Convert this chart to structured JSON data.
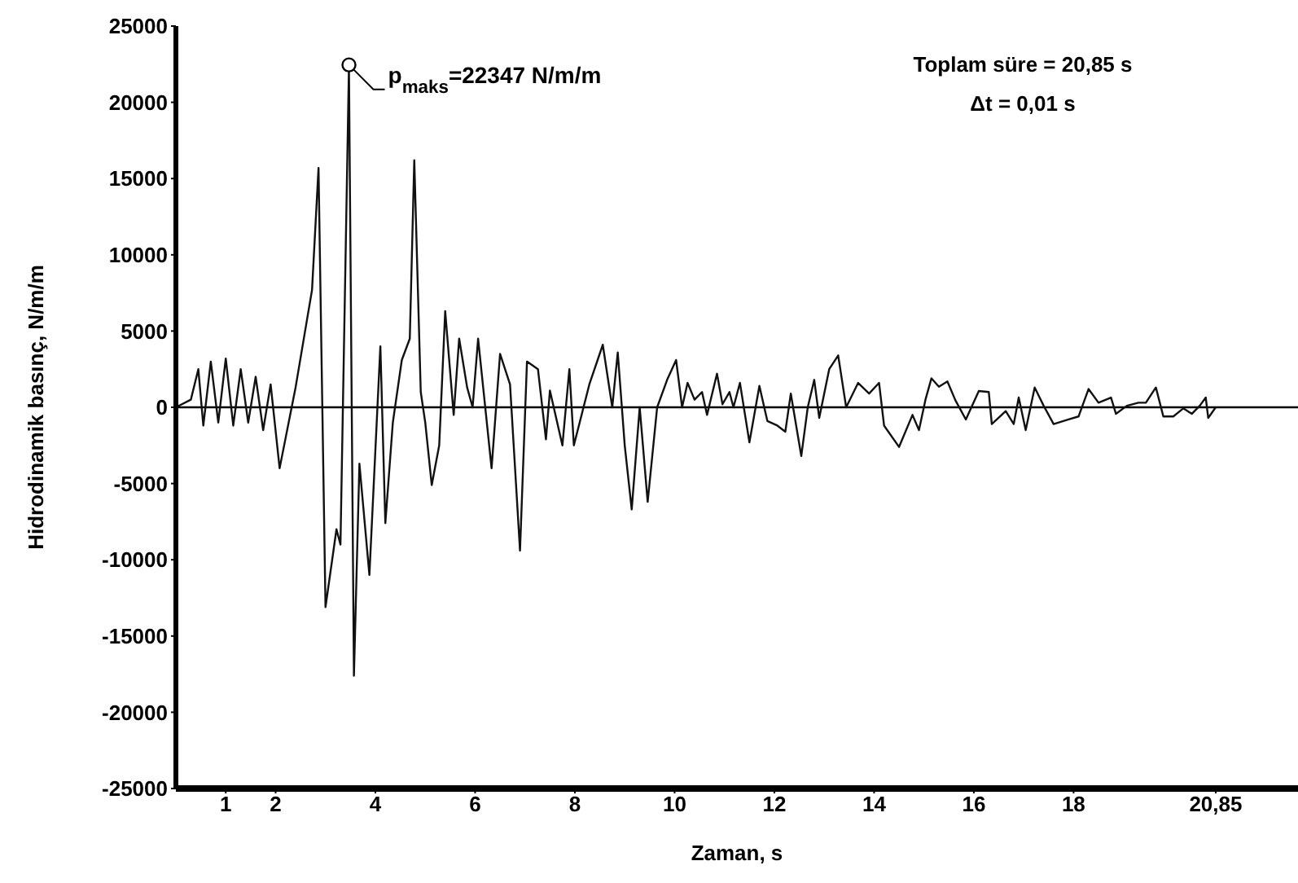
{
  "chart_data": {
    "type": "line",
    "xlabel": "Zaman, s",
    "ylabel": "Hidrodinamik basınç,  N/m/m",
    "xlim": [
      0,
      22.5
    ],
    "xticks": [
      1,
      2,
      4,
      6,
      8,
      10,
      12,
      14,
      16,
      18,
      {
        "value": 20.85,
        "label": "20,85"
      }
    ],
    "ylim": [
      -25000,
      25000
    ],
    "yticks": [
      -25000,
      -20000,
      -15000,
      -10000,
      -5000,
      0,
      5000,
      10000,
      15000,
      20000,
      25000
    ],
    "grid": false,
    "legend": false,
    "marker": "none",
    "line_style": "solid",
    "ref_lines": [
      {
        "axis": "y",
        "value": 0,
        "color": "#000000"
      }
    ],
    "annotations": [
      {
        "text": "p$_{maks}$=22347 N/m/m",
        "x": 3.47,
        "y": 22347
      },
      "Toplam süre = 20,85 s",
      "Δt = 0,01 s"
    ],
    "x": [
      0,
      0.3,
      0.45,
      0.55,
      0.7,
      0.85,
      1.0,
      1.15,
      1.3,
      1.45,
      1.6,
      1.75,
      1.9,
      2.08,
      2.4,
      2.73,
      2.86,
      3.0,
      3.22,
      3.3,
      3.47,
      3.57,
      3.68,
      3.88,
      4.1,
      4.2,
      4.35,
      4.53,
      4.69,
      4.78,
      4.91,
      5.0,
      5.13,
      5.28,
      5.4,
      5.57,
      5.68,
      5.84,
      5.95,
      6.06,
      6.33,
      6.5,
      6.7,
      6.9,
      7.04,
      7.26,
      7.42,
      7.5,
      7.75,
      7.89,
      7.98,
      8.29,
      8.56,
      8.75,
      8.86,
      9.0,
      9.14,
      9.3,
      9.46,
      9.65,
      9.85,
      10.03,
      10.15,
      10.26,
      10.4,
      10.55,
      10.65,
      10.85,
      10.96,
      11.1,
      11.18,
      11.31,
      11.5,
      11.7,
      11.86,
      12.06,
      12.22,
      12.33,
      12.54,
      12.67,
      12.8,
      12.9,
      13.1,
      13.28,
      13.44,
      13.68,
      13.9,
      14.1,
      14.2,
      14.5,
      14.77,
      14.9,
      15.03,
      15.15,
      15.3,
      15.47,
      15.63,
      15.84,
      16.1,
      16.3,
      16.36,
      16.64,
      16.8,
      16.9,
      17.04,
      17.22,
      17.4,
      17.6,
      17.9,
      18.1,
      18.3,
      18.5,
      18.75,
      18.85,
      19.07,
      19.3,
      19.45,
      19.65,
      19.8,
      20.0,
      20.2,
      20.37,
      20.53,
      20.65,
      20.7,
      20.85
    ],
    "series": [
      {
        "color": "#111111",
        "values": [
          0,
          500,
          2500,
          -1200,
          3000,
          -1000,
          3200,
          -1200,
          2500,
          -1000,
          2000,
          -1500,
          1500,
          -4000,
          1300,
          7700,
          15700,
          -13100,
          -8000,
          -9000,
          22347,
          -17600,
          -3700,
          -11000,
          4000,
          -7600,
          -1000,
          3100,
          4500,
          16200,
          1000,
          -1000,
          -5100,
          -2500,
          6300,
          -500,
          4500,
          1300,
          0,
          4500,
          -4000,
          3500,
          1500,
          -9400,
          3000,
          2500,
          -2100,
          1100,
          -2500,
          2500,
          -2500,
          1500,
          4100,
          0,
          3600,
          -2500,
          -6700,
          0,
          -6200,
          0,
          1800,
          3100,
          0,
          1600,
          500,
          1000,
          -500,
          2200,
          200,
          1000,
          0,
          1600,
          -2300,
          1400,
          -900,
          -1200,
          -1600,
          900,
          -3200,
          0,
          1800,
          -700,
          2500,
          3400,
          0,
          1600,
          900,
          1600,
          -1200,
          -2600,
          -500,
          -1500,
          500,
          1900,
          1350,
          1700,
          460,
          -800,
          1070,
          1000,
          -1100,
          -250,
          -1100,
          640,
          -1500,
          1300,
          100,
          -1100,
          -800,
          -600,
          1200,
          300,
          640,
          -430,
          100,
          300,
          300,
          1300,
          -600,
          -600,
          -70,
          -430,
          100,
          640,
          -700,
          0
        ]
      }
    ]
  }
}
